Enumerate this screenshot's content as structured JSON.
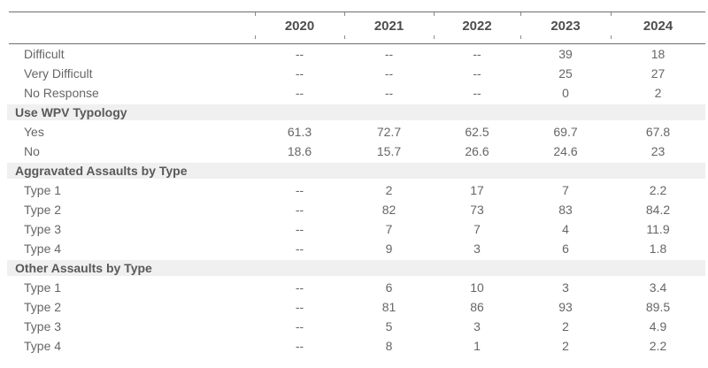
{
  "chart_data": {
    "type": "table",
    "no_data_marker": "--",
    "columns": [
      "",
      "2020",
      "2021",
      "2022",
      "2023",
      "2024"
    ],
    "rows": [
      {
        "type": "data",
        "label": "Difficult",
        "values": [
          "--",
          "--",
          "--",
          "39",
          "18"
        ]
      },
      {
        "type": "data",
        "label": "Very Difficult",
        "values": [
          "--",
          "--",
          "--",
          "25",
          "27"
        ]
      },
      {
        "type": "data",
        "label": "No Response",
        "values": [
          "--",
          "--",
          "--",
          "0",
          "2"
        ]
      },
      {
        "type": "section",
        "label": "Use WPV Typology"
      },
      {
        "type": "data",
        "label": "Yes",
        "values": [
          "61.3",
          "72.7",
          "62.5",
          "69.7",
          "67.8"
        ]
      },
      {
        "type": "data",
        "label": "No",
        "values": [
          "18.6",
          "15.7",
          "26.6",
          "24.6",
          "23"
        ]
      },
      {
        "type": "section",
        "label": "Aggravated Assaults by Type"
      },
      {
        "type": "data",
        "label": "Type 1",
        "values": [
          "--",
          "2",
          "17",
          "7",
          "2.2"
        ]
      },
      {
        "type": "data",
        "label": "Type 2",
        "values": [
          "--",
          "82",
          "73",
          "83",
          "84.2"
        ]
      },
      {
        "type": "data",
        "label": "Type 3",
        "values": [
          "--",
          "7",
          "7",
          "4",
          "11.9"
        ]
      },
      {
        "type": "data",
        "label": "Type 4",
        "values": [
          "--",
          "9",
          "3",
          "6",
          "1.8"
        ]
      },
      {
        "type": "section",
        "label": "Other Assaults by Type"
      },
      {
        "type": "data",
        "label": "Type 1",
        "values": [
          "--",
          "6",
          "10",
          "3",
          "3.4"
        ]
      },
      {
        "type": "data",
        "label": "Type 2",
        "values": [
          "--",
          "81",
          "86",
          "93",
          "89.5"
        ]
      },
      {
        "type": "data",
        "label": "Type 3",
        "values": [
          "--",
          "5",
          "3",
          "2",
          "4.9"
        ]
      },
      {
        "type": "data",
        "label": "Type 4",
        "values": [
          "--",
          "8",
          "1",
          "2",
          "2.2"
        ]
      }
    ],
    "layout": {
      "grid": "horizontal rules around header row only",
      "section_rows_shaded": true,
      "value_alignment": "center"
    }
  },
  "colors": {
    "rule_line": "#6e6e6e",
    "section_background": "#f0f0f0",
    "header_text": "#4d4d4d",
    "body_text": "#666666",
    "section_text": "#595959"
  }
}
